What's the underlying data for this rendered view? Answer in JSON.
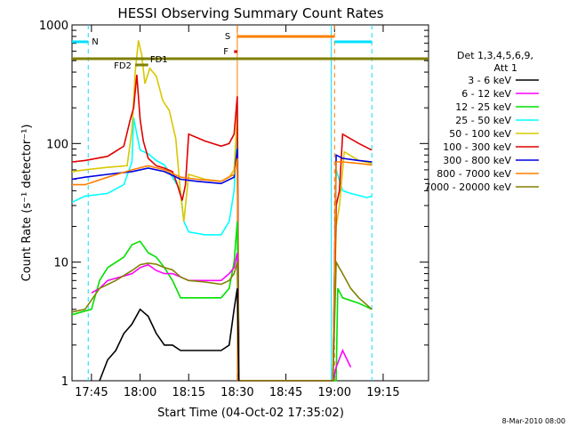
{
  "chart_data": {
    "type": "line",
    "title": "HESSI Observing Summary Count Rates",
    "xlabel": "Start Time (04-Oct-02 17:35:02)",
    "ylabel": "Count Rate (s⁻¹ detector⁻¹)",
    "x_range_min": [
      -12,
      208
    ],
    "ylim": [
      1,
      1000
    ],
    "yscale": "log",
    "x_ticks": [
      {
        "v": 0,
        "label": "17:45"
      },
      {
        "v": 30,
        "label": "18:00"
      },
      {
        "v": 60,
        "label": "18:15"
      },
      {
        "v": 90,
        "label": "18:30"
      },
      {
        "v": 120,
        "label": "18:45"
      },
      {
        "v": 150,
        "label": "19:00"
      },
      {
        "v": 180,
        "label": "19:15"
      }
    ],
    "y_ticks": [
      {
        "v": 1,
        "label": "1"
      },
      {
        "v": 10,
        "label": "10"
      },
      {
        "v": 100,
        "label": "100"
      },
      {
        "v": 1000,
        "label": "1000"
      }
    ],
    "legend": {
      "position": "right",
      "title_lines": [
        "Det 1,3,4,5,6,9,",
        "Att 1"
      ],
      "entries": [
        {
          "label": "3 - 6 keV",
          "color": "#000000"
        },
        {
          "label": "6 - 12 keV",
          "color": "#ff00ff"
        },
        {
          "label": "12 - 25 keV",
          "color": "#00e000"
        },
        {
          "label": "25 - 50 keV",
          "color": "#00ffff"
        },
        {
          "label": "50 - 100 keV",
          "color": "#d8c800"
        },
        {
          "label": "100 - 300 keV",
          "color": "#e00000"
        },
        {
          "label": "300 - 800 keV",
          "color": "#0000e0"
        },
        {
          "label": "800 - 7000 keV",
          "color": "#ff7f00"
        },
        {
          "label": "7000 - 20000 keV",
          "color": "#808000"
        }
      ]
    },
    "time_bars": [
      {
        "label": "N",
        "color": "#00e0ff",
        "segments": [
          [
            -12,
            -2
          ],
          [
            150,
            173
          ]
        ]
      },
      {
        "label": "S",
        "color": "#ff7f00",
        "segments": [
          [
            90,
            150
          ]
        ]
      },
      {
        "label": "F",
        "color": "#e00000",
        "segments": [
          [
            88,
            90
          ]
        ]
      },
      {
        "label": "FD1",
        "color": "#808000",
        "segments": [
          [
            -12,
            208
          ]
        ]
      },
      {
        "label": "FD2",
        "color": "#808000",
        "segments": [
          [
            27,
            35
          ]
        ]
      }
    ],
    "series": [
      {
        "color": "#00ffff",
        "points": [
          [
            -12,
            32
          ],
          [
            -4,
            36
          ],
          [
            10,
            38
          ],
          [
            20,
            45
          ],
          [
            25,
            70
          ],
          [
            26,
            165
          ],
          [
            28,
            120
          ],
          [
            30,
            88
          ],
          [
            35,
            82
          ],
          [
            40,
            72
          ],
          [
            45,
            66
          ],
          [
            50,
            52
          ],
          [
            55,
            40
          ],
          [
            57,
            22
          ],
          [
            60,
            18
          ],
          [
            70,
            17
          ],
          [
            80,
            17
          ],
          [
            85,
            22
          ],
          [
            88,
            40
          ],
          [
            90,
            150
          ],
          [
            91,
            1
          ],
          [
            149,
            1
          ],
          [
            151,
            60
          ],
          [
            155,
            40
          ],
          [
            160,
            38
          ],
          [
            170,
            35
          ],
          [
            173,
            36
          ]
        ]
      },
      {
        "color": "#d8c800",
        "points": [
          [
            -12,
            58
          ],
          [
            -4,
            60
          ],
          [
            10,
            63
          ],
          [
            22,
            65
          ],
          [
            25,
            130
          ],
          [
            27,
            400
          ],
          [
            29,
            740
          ],
          [
            31,
            560
          ],
          [
            33,
            320
          ],
          [
            36,
            430
          ],
          [
            40,
            370
          ],
          [
            44,
            230
          ],
          [
            48,
            190
          ],
          [
            52,
            110
          ],
          [
            55,
            38
          ],
          [
            57,
            22
          ],
          [
            60,
            55
          ],
          [
            70,
            50
          ],
          [
            80,
            48
          ],
          [
            85,
            52
          ],
          [
            88,
            60
          ],
          [
            90,
            180
          ],
          [
            91,
            1
          ],
          [
            149,
            1
          ],
          [
            151,
            20
          ],
          [
            153,
            30
          ],
          [
            156,
            85
          ],
          [
            165,
            72
          ],
          [
            173,
            68
          ]
        ]
      },
      {
        "color": "#e00000",
        "points": [
          [
            -12,
            70
          ],
          [
            -4,
            72
          ],
          [
            10,
            78
          ],
          [
            20,
            95
          ],
          [
            24,
            160
          ],
          [
            26,
            200
          ],
          [
            28,
            380
          ],
          [
            30,
            160
          ],
          [
            32,
            105
          ],
          [
            35,
            75
          ],
          [
            40,
            65
          ],
          [
            45,
            62
          ],
          [
            50,
            58
          ],
          [
            53,
            45
          ],
          [
            56,
            33
          ],
          [
            58,
            45
          ],
          [
            60,
            120
          ],
          [
            70,
            105
          ],
          [
            80,
            95
          ],
          [
            85,
            100
          ],
          [
            88,
            120
          ],
          [
            90,
            250
          ],
          [
            91,
            1
          ],
          [
            149,
            1
          ],
          [
            151,
            30
          ],
          [
            153,
            40
          ],
          [
            155,
            120
          ],
          [
            165,
            100
          ],
          [
            173,
            88
          ]
        ]
      },
      {
        "color": "#0000e0",
        "points": [
          [
            -12,
            50
          ],
          [
            -4,
            52
          ],
          [
            10,
            55
          ],
          [
            25,
            58
          ],
          [
            35,
            62
          ],
          [
            45,
            58
          ],
          [
            55,
            50
          ],
          [
            65,
            48
          ],
          [
            80,
            46
          ],
          [
            88,
            52
          ],
          [
            90,
            90
          ],
          [
            91,
            1
          ],
          [
            149,
            1
          ],
          [
            151,
            80
          ],
          [
            155,
            75
          ],
          [
            165,
            72
          ],
          [
            173,
            70
          ]
        ]
      },
      {
        "color": "#ff7f00",
        "points": [
          [
            -12,
            45
          ],
          [
            -4,
            45
          ],
          [
            10,
            52
          ],
          [
            25,
            60
          ],
          [
            35,
            65
          ],
          [
            45,
            60
          ],
          [
            55,
            52
          ],
          [
            65,
            50
          ],
          [
            80,
            48
          ],
          [
            88,
            55
          ],
          [
            90,
            75
          ],
          [
            91,
            1
          ],
          [
            149,
            1
          ],
          [
            151,
            70
          ],
          [
            155,
            70
          ],
          [
            165,
            68
          ],
          [
            173,
            66
          ]
        ]
      },
      {
        "color": "#00e000",
        "points": [
          [
            -12,
            3.6
          ],
          [
            -6,
            3.8
          ],
          [
            0,
            4
          ],
          [
            5,
            7
          ],
          [
            10,
            9
          ],
          [
            20,
            11
          ],
          [
            25,
            14
          ],
          [
            30,
            15
          ],
          [
            35,
            12
          ],
          [
            40,
            11
          ],
          [
            45,
            9
          ],
          [
            50,
            7
          ],
          [
            55,
            5
          ],
          [
            60,
            5
          ],
          [
            70,
            5
          ],
          [
            80,
            5
          ],
          [
            85,
            6
          ],
          [
            88,
            10
          ],
          [
            90,
            22
          ],
          [
            91,
            1
          ],
          [
            151,
            1
          ],
          [
            152,
            6
          ],
          [
            155,
            5
          ],
          [
            165,
            4.5
          ],
          [
            173,
            4
          ]
        ]
      },
      {
        "color": "#ff00ff",
        "points": [
          [
            0,
            5.5
          ],
          [
            5,
            6
          ],
          [
            10,
            7
          ],
          [
            18,
            7.5
          ],
          [
            25,
            8
          ],
          [
            30,
            9
          ],
          [
            35,
            9.5
          ],
          [
            40,
            8.5
          ],
          [
            45,
            8
          ],
          [
            50,
            8
          ],
          [
            55,
            7.5
          ],
          [
            60,
            7
          ],
          [
            70,
            7
          ],
          [
            80,
            7
          ],
          [
            85,
            8
          ],
          [
            88,
            9
          ],
          [
            90,
            12
          ],
          [
            91,
            1
          ],
          [
            149,
            1
          ],
          [
            151,
            1.3
          ],
          [
            155,
            1.8
          ],
          [
            160,
            1.3
          ]
        ]
      },
      {
        "color": "#808000",
        "points": [
          [
            -12,
            3.8
          ],
          [
            -4,
            4
          ],
          [
            5,
            6
          ],
          [
            15,
            7
          ],
          [
            25,
            8.5
          ],
          [
            30,
            9.5
          ],
          [
            35,
            9.8
          ],
          [
            40,
            9.6
          ],
          [
            45,
            9
          ],
          [
            50,
            8.6
          ],
          [
            55,
            7.5
          ],
          [
            60,
            7
          ],
          [
            70,
            6.8
          ],
          [
            80,
            6.5
          ],
          [
            85,
            7
          ],
          [
            88,
            8
          ],
          [
            90,
            10
          ],
          [
            91,
            1
          ],
          [
            149,
            1
          ],
          [
            151,
            10
          ],
          [
            155,
            8
          ],
          [
            160,
            6
          ],
          [
            165,
            5
          ],
          [
            173,
            4
          ]
        ]
      },
      {
        "color": "#000000",
        "points": [
          [
            5,
            1
          ],
          [
            10,
            1.5
          ],
          [
            15,
            1.8
          ],
          [
            20,
            2.5
          ],
          [
            25,
            3
          ],
          [
            30,
            4
          ],
          [
            35,
            3.5
          ],
          [
            40,
            2.5
          ],
          [
            45,
            2
          ],
          [
            50,
            2
          ],
          [
            55,
            1.8
          ],
          [
            60,
            1.8
          ],
          [
            70,
            1.8
          ],
          [
            80,
            1.8
          ],
          [
            85,
            2
          ],
          [
            88,
            4
          ],
          [
            90,
            6
          ],
          [
            91,
            1
          ]
        ]
      }
    ]
  },
  "footer": {
    "date_stamp": "8-Mar-2010 08:00"
  }
}
